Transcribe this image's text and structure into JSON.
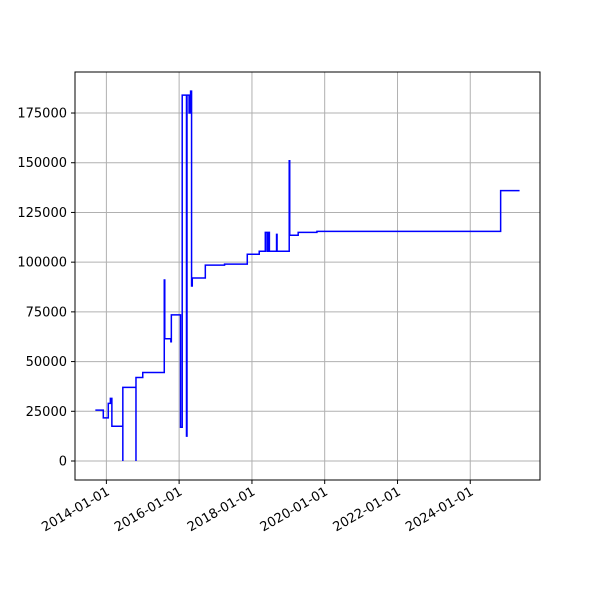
{
  "chart_data": {
    "type": "line",
    "color": "#0000ff",
    "grid": true,
    "x": [
      "2013-09-12",
      "2013-12-01",
      "2013-12-01",
      "2014-01-20",
      "2014-01-20",
      "2014-02-10",
      "2014-02-10",
      "2014-02-25",
      "2014-02-25",
      "2014-06-15",
      "2014-06-15",
      "2014-06-15",
      "2014-10-25",
      "2014-10-25",
      "2014-10-25",
      "2015-01-01",
      "2015-01-01",
      "2015-08-05",
      "2015-08-05",
      "2015-08-10",
      "2015-08-10",
      "2015-10-10",
      "2015-10-10",
      "2015-10-15",
      "2015-10-15",
      "2016-01-15",
      "2016-01-15",
      "2016-02-01",
      "2016-02-01",
      "2016-03-15",
      "2016-03-15",
      "2016-03-20",
      "2016-03-20",
      "2016-04-10",
      "2016-04-10",
      "2016-04-25",
      "2016-04-25",
      "2016-05-05",
      "2016-05-05",
      "2016-05-12",
      "2016-05-12",
      "2016-09-20",
      "2016-09-20",
      "2017-04-01",
      "2017-04-01",
      "2017-11-15",
      "2017-11-15",
      "2018-03-15",
      "2018-03-15",
      "2018-05-15",
      "2018-05-15",
      "2018-06-01",
      "2018-06-01",
      "2018-06-10",
      "2018-06-10",
      "2018-06-25",
      "2018-06-25",
      "2018-09-05",
      "2018-09-05",
      "2018-09-10",
      "2018-09-10",
      "2019-01-10",
      "2019-01-10",
      "2019-01-15",
      "2019-01-15",
      "2019-04-10",
      "2019-04-10",
      "2019-10-15",
      "2019-10-15",
      "2024-11-01",
      "2024-11-01",
      "2025-05-10"
    ],
    "values": [
      25600,
      25600,
      21700,
      21700,
      29000,
      29000,
      31500,
      31500,
      17500,
      17500,
      0,
      37000,
      37000,
      0,
      42000,
      42000,
      44500,
      44500,
      91000,
      91000,
      61500,
      61500,
      60000,
      60000,
      73500,
      73500,
      17000,
      17000,
      184000,
      184000,
      12500,
      12500,
      184000,
      184000,
      175000,
      175000,
      186000,
      186000,
      88000,
      88000,
      92000,
      92000,
      98500,
      98500,
      99000,
      99000,
      104000,
      104000,
      105500,
      105500,
      115000,
      115000,
      105500,
      105500,
      115000,
      115000,
      105500,
      105500,
      114000,
      114000,
      105500,
      105500,
      151000,
      151000,
      113500,
      113500,
      115000,
      115000,
      115500,
      115500,
      136000,
      136000
    ],
    "xlim": [
      "2013-02-20",
      "2025-12-01"
    ],
    "xticks": [
      "2014-01-01",
      "2016-01-01",
      "2018-01-01",
      "2020-01-01",
      "2022-01-01",
      "2024-01-01"
    ],
    "ylim": [
      -9555,
      195630
    ],
    "yticks": [
      0,
      25000,
      50000,
      75000,
      100000,
      125000,
      150000,
      175000
    ]
  }
}
